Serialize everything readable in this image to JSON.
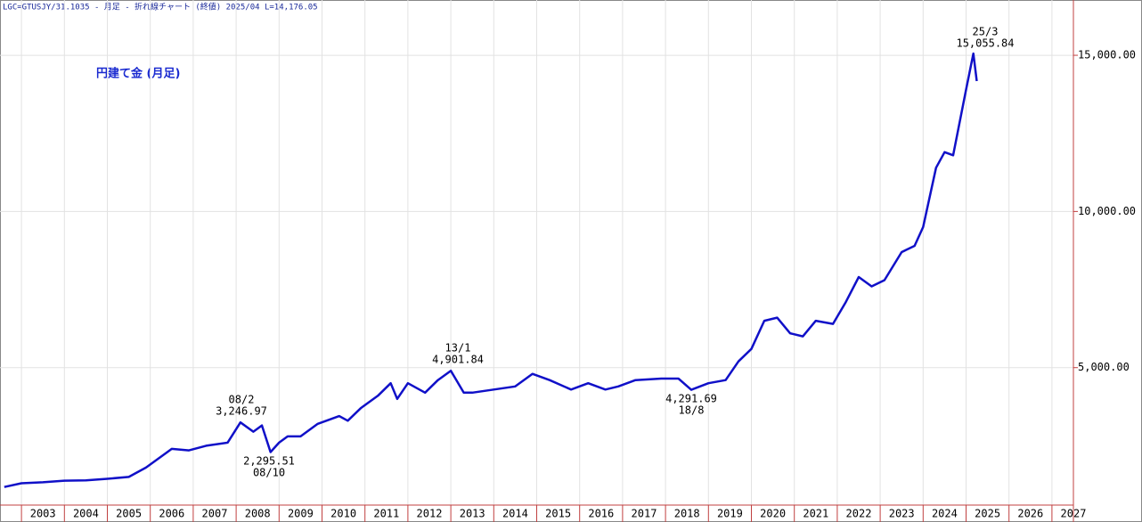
{
  "chart_data": {
    "type": "line",
    "header": "LGC=GTUSJY/31.1035 - 月足 - 折れ線チャート (終値)  2025/04 L=14,176.05",
    "title": "円建て金 (月足)",
    "annotations": [
      "25/3",
      "15,055.84",
      "13/1",
      "4,901.84",
      "08/2",
      "3,246.97",
      "2,295.51",
      "08/10",
      "4,291.69",
      "18/8"
    ],
    "x": [
      2002.6,
      2003.0,
      2003.5,
      2004.0,
      2004.5,
      2005.0,
      2005.5,
      2005.9,
      2006.3,
      2006.5,
      2006.9,
      2007.3,
      2007.8,
      2008.1,
      2008.4,
      2008.6,
      2008.8,
      2009.0,
      2009.2,
      2009.5,
      2009.9,
      2010.4,
      2010.6,
      2010.9,
      2011.3,
      2011.6,
      2011.75,
      2012.0,
      2012.4,
      2012.7,
      2013.0,
      2013.3,
      2013.5,
      2014.0,
      2014.5,
      2014.9,
      2015.3,
      2015.8,
      2016.2,
      2016.6,
      2016.9,
      2017.3,
      2017.9,
      2018.3,
      2018.6,
      2019.0,
      2019.4,
      2019.7,
      2020.0,
      2020.3,
      2020.6,
      2020.9,
      2021.2,
      2021.5,
      2021.9,
      2022.2,
      2022.5,
      2022.8,
      2023.1,
      2023.5,
      2023.8,
      2024.0,
      2024.3,
      2024.5,
      2024.7,
      2025.0,
      2025.17,
      2025.25
    ],
    "series": [
      {
        "color": "#1010c8",
        "values": [
          1180,
          1300,
          1330,
          1380,
          1390,
          1440,
          1500,
          1800,
          2200,
          2400,
          2350,
          2500,
          2600,
          3246.97,
          2950,
          3150,
          2295.51,
          2600,
          2800,
          2800,
          3200,
          3450,
          3300,
          3700,
          4100,
          4500,
          4000,
          4500,
          4200,
          4600,
          4901.84,
          4200,
          4200,
          4300,
          4400,
          4800,
          4600,
          4300,
          4500,
          4300,
          4400,
          4600,
          4650,
          4650,
          4291.69,
          4500,
          4600,
          5200,
          5600,
          6500,
          6600,
          6100,
          6000,
          6500,
          6400,
          7100,
          7900,
          7600,
          7800,
          8700,
          8900,
          9500,
          11400,
          11900,
          11800,
          13900,
          15055.84,
          14176.05
        ]
      }
    ],
    "xlim": [
      2002.5,
      2027.5
    ],
    "xticks": [
      2003,
      2004,
      2005,
      2006,
      2007,
      2008,
      2009,
      2010,
      2011,
      2012,
      2013,
      2014,
      2015,
      2016,
      2017,
      2018,
      2019,
      2020,
      2021,
      2022,
      2023,
      2024,
      2025,
      2026,
      2027
    ],
    "ylim": [
      600,
      16770
    ],
    "yticks": [
      {
        "value": 5000,
        "label": "5,000.00"
      },
      {
        "value": 10000,
        "label": "10,000.00"
      },
      {
        "value": 15000,
        "label": "15,000.00"
      }
    ],
    "grid": true
  }
}
